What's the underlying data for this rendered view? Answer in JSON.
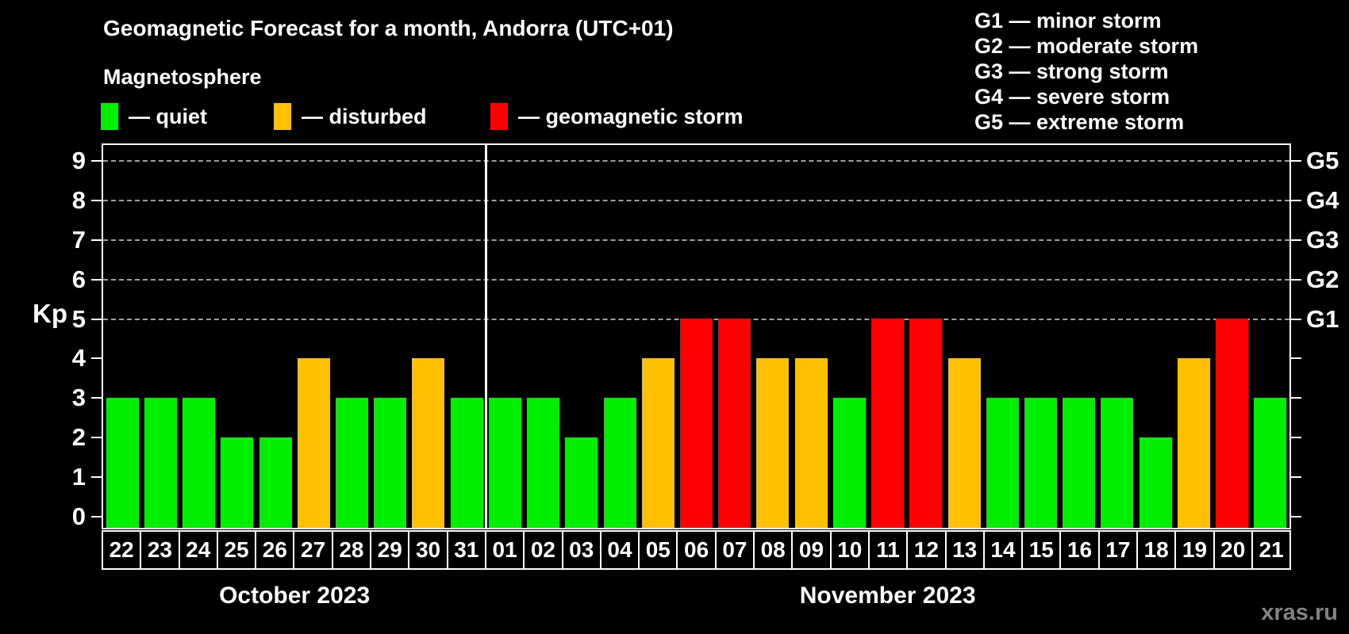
{
  "header": {
    "title": "Geomagnetic Forecast for a month, Andorra (UTC+01)",
    "subtitle": "Magnetosphere"
  },
  "legend": {
    "items": [
      {
        "name": "quiet",
        "label": "— quiet",
        "color": "#00ee00",
        "x": 127
      },
      {
        "name": "disturbed",
        "label": "— disturbed",
        "color": "#ffc000",
        "x": 345
      },
      {
        "name": "geomagnetic-storm",
        "label": "— geomagnetic storm",
        "color": "#ff0000",
        "x": 618
      }
    ]
  },
  "storm_scale_legend": {
    "items": [
      "G1 — minor storm",
      "G2 — moderate storm",
      "G3 — strong storm",
      "G4 — severe storm",
      "G5 — extreme storm"
    ]
  },
  "axis": {
    "kp_label": "Kp",
    "y_ticks": [
      0,
      1,
      2,
      3,
      4,
      5,
      6,
      7,
      8,
      9
    ],
    "gridlines_at": [
      5,
      6,
      7,
      8,
      9
    ],
    "right_labels": [
      {
        "kp": 5,
        "label": "G1"
      },
      {
        "kp": 6,
        "label": "G2"
      },
      {
        "kp": 7,
        "label": "G3"
      },
      {
        "kp": 8,
        "label": "G4"
      },
      {
        "kp": 9,
        "label": "G5"
      }
    ]
  },
  "months": [
    {
      "label": "October 2023",
      "days": 10
    },
    {
      "label": "November 2023",
      "days": 21
    }
  ],
  "chart_data": {
    "type": "bar",
    "title": "Geomagnetic Forecast for a month, Andorra (UTC+01)",
    "xlabel": "",
    "ylabel": "Kp",
    "ylim": [
      0,
      9.4
    ],
    "grid": "dashed horizontal at Kp 5-9 (G1-G5 levels)",
    "legend_position": "top",
    "status_colors": {
      "quiet": "#00ee00",
      "disturbed": "#ffc000",
      "storm": "#ff0000"
    },
    "points": [
      {
        "day": "22",
        "month": "October 2023",
        "kp": 3,
        "status": "quiet"
      },
      {
        "day": "23",
        "month": "October 2023",
        "kp": 3,
        "status": "quiet"
      },
      {
        "day": "24",
        "month": "October 2023",
        "kp": 3,
        "status": "quiet"
      },
      {
        "day": "25",
        "month": "October 2023",
        "kp": 2,
        "status": "quiet"
      },
      {
        "day": "26",
        "month": "October 2023",
        "kp": 2,
        "status": "quiet"
      },
      {
        "day": "27",
        "month": "October 2023",
        "kp": 4,
        "status": "disturbed"
      },
      {
        "day": "28",
        "month": "October 2023",
        "kp": 3,
        "status": "quiet"
      },
      {
        "day": "29",
        "month": "October 2023",
        "kp": 3,
        "status": "quiet"
      },
      {
        "day": "30",
        "month": "October 2023",
        "kp": 4,
        "status": "disturbed"
      },
      {
        "day": "31",
        "month": "October 2023",
        "kp": 3,
        "status": "quiet"
      },
      {
        "day": "01",
        "month": "November 2023",
        "kp": 3,
        "status": "quiet"
      },
      {
        "day": "02",
        "month": "November 2023",
        "kp": 3,
        "status": "quiet"
      },
      {
        "day": "03",
        "month": "November 2023",
        "kp": 2,
        "status": "quiet"
      },
      {
        "day": "04",
        "month": "November 2023",
        "kp": 3,
        "status": "quiet"
      },
      {
        "day": "05",
        "month": "November 2023",
        "kp": 4,
        "status": "disturbed"
      },
      {
        "day": "06",
        "month": "November 2023",
        "kp": 5,
        "status": "storm"
      },
      {
        "day": "07",
        "month": "November 2023",
        "kp": 5,
        "status": "storm"
      },
      {
        "day": "08",
        "month": "November 2023",
        "kp": 4,
        "status": "disturbed"
      },
      {
        "day": "09",
        "month": "November 2023",
        "kp": 4,
        "status": "disturbed"
      },
      {
        "day": "10",
        "month": "November 2023",
        "kp": 3,
        "status": "quiet"
      },
      {
        "day": "11",
        "month": "November 2023",
        "kp": 5,
        "status": "storm"
      },
      {
        "day": "12",
        "month": "November 2023",
        "kp": 5,
        "status": "storm"
      },
      {
        "day": "13",
        "month": "November 2023",
        "kp": 4,
        "status": "disturbed"
      },
      {
        "day": "14",
        "month": "November 2023",
        "kp": 3,
        "status": "quiet"
      },
      {
        "day": "15",
        "month": "November 2023",
        "kp": 3,
        "status": "quiet"
      },
      {
        "day": "16",
        "month": "November 2023",
        "kp": 3,
        "status": "quiet"
      },
      {
        "day": "17",
        "month": "November 2023",
        "kp": 3,
        "status": "quiet"
      },
      {
        "day": "18",
        "month": "November 2023",
        "kp": 2,
        "status": "quiet"
      },
      {
        "day": "19",
        "month": "November 2023",
        "kp": 4,
        "status": "disturbed"
      },
      {
        "day": "20",
        "month": "November 2023",
        "kp": 5,
        "status": "storm"
      },
      {
        "day": "21",
        "month": "November 2023",
        "kp": 3,
        "status": "quiet"
      }
    ]
  },
  "watermark": "xras.ru"
}
